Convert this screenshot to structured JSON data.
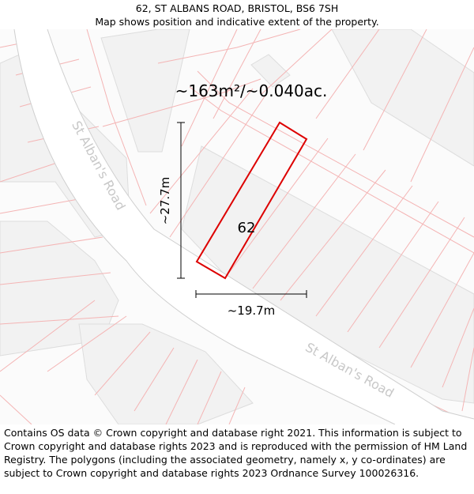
{
  "header": {
    "title": "62, ST ALBANS ROAD, BRISTOL, BS6 7SH",
    "subtitle": "Map shows position and indicative extent of the property."
  },
  "map": {
    "area_label": "~163m²/~0.040ac.",
    "plot_number": "62",
    "height_label": "~27.7m",
    "width_label": "~19.7m",
    "road_label_1": "St Alban's Road",
    "road_label_2": "St Alban's Road",
    "colors": {
      "building": "#f2f2f2",
      "building_stroke": "#dddddd",
      "parcel": "#f4b4b4",
      "road": "#ffffff",
      "road_edge": "#cfcfcf",
      "property": "#dd0000"
    }
  },
  "footer": {
    "text": "Contains OS data © Crown copyright and database right 2021. This information is subject to Crown copyright and database rights 2023 and is reproduced with the permission of HM Land Registry. The polygons (including the associated geometry, namely x, y co-ordinates) are subject to Crown copyright and database rights 2023 Ordnance Survey 100026316."
  }
}
